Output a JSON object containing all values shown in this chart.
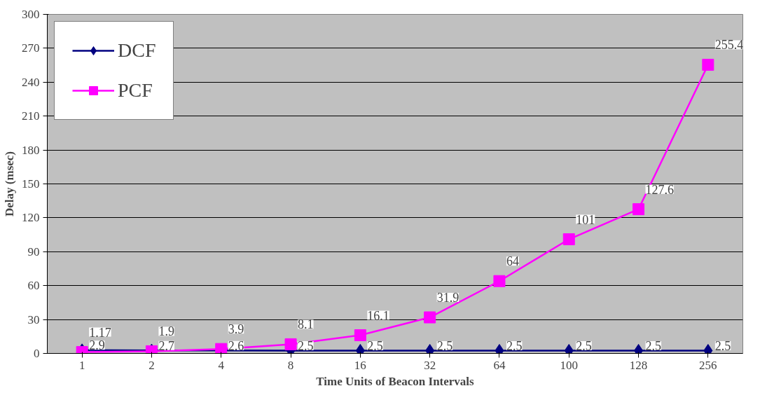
{
  "chart_data": {
    "type": "line",
    "xlabel": "Time Units of Beacon Intervals",
    "ylabel": "Delay (msec)",
    "categories": [
      "1",
      "2",
      "4",
      "8",
      "16",
      "32",
      "64",
      "100",
      "128",
      "256"
    ],
    "series": [
      {
        "name": "DCF",
        "color": "#000080",
        "marker": "diamond",
        "values": [
          2.9,
          2.7,
          2.6,
          2.5,
          2.5,
          2.5,
          2.5,
          2.5,
          2.5,
          2.5
        ]
      },
      {
        "name": "PCF",
        "color": "#ff00ff",
        "marker": "square",
        "values": [
          1.17,
          1.9,
          3.9,
          8.1,
          16.1,
          31.9,
          64,
          101,
          127.6,
          255.4
        ]
      }
    ],
    "ylim": [
      0,
      300
    ],
    "yticks": [
      0,
      30,
      60,
      90,
      120,
      150,
      180,
      210,
      240,
      270,
      300
    ],
    "grid": "y",
    "legend": "top left",
    "data_labels": true
  }
}
